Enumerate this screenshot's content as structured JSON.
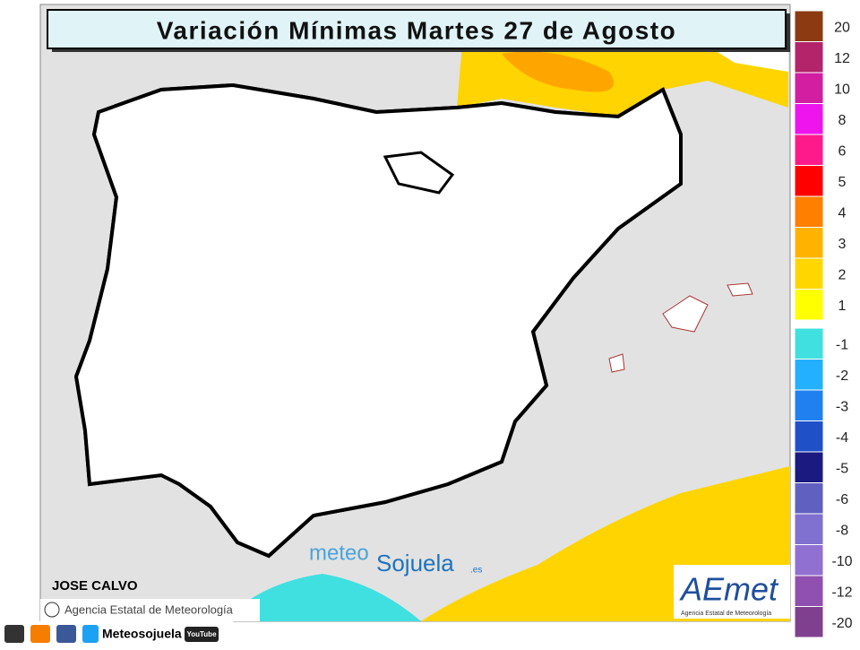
{
  "header": {
    "title": "Variación Mínimas Martes 27 de Agosto"
  },
  "legend": {
    "positive": [
      {
        "value": 20,
        "color": "#8b3a12"
      },
      {
        "value": 12,
        "color": "#b3246b"
      },
      {
        "value": 10,
        "color": "#d21ea0"
      },
      {
        "value": 8,
        "color": "#ee14ee"
      },
      {
        "value": 6,
        "color": "#ff1a8c"
      },
      {
        "value": 5,
        "color": "#ff0000"
      },
      {
        "value": 4,
        "color": "#ff7f00"
      },
      {
        "value": 3,
        "color": "#ffb300"
      },
      {
        "value": 2,
        "color": "#ffd700"
      },
      {
        "value": 1,
        "color": "#ffff00"
      }
    ],
    "negative": [
      {
        "value": -1,
        "color": "#40e0e0"
      },
      {
        "value": -2,
        "color": "#22b0ff"
      },
      {
        "value": -3,
        "color": "#2080f0"
      },
      {
        "value": -4,
        "color": "#2050c8"
      },
      {
        "value": -5,
        "color": "#1a1a80"
      },
      {
        "value": -6,
        "color": "#6060c0"
      },
      {
        "value": -8,
        "color": "#8070d0"
      },
      {
        "value": -10,
        "color": "#9070d0"
      },
      {
        "value": -12,
        "color": "#9050b0"
      },
      {
        "value": -20,
        "color": "#804090"
      }
    ]
  },
  "author": "JOSE CALVO",
  "credit": "Agencia Estatal de Meteorología",
  "watermark": {
    "part1": "meteo",
    "part2": "Sojuela",
    "part3": ".es"
  },
  "logo": {
    "name": "AEmet",
    "subtitle": "Agencia Estatal de Meteorología"
  },
  "footer": {
    "brand": "Meteosojuela",
    "youtube": "YouTube"
  }
}
